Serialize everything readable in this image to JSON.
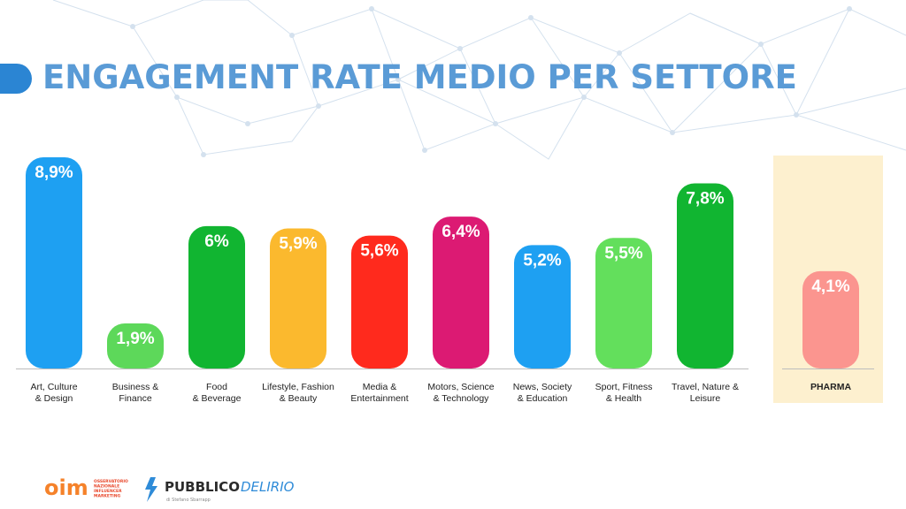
{
  "slide": {
    "title": "ENGAGEMENT RATE MEDIO PER SETTORE",
    "title_color": "#5a9bd6",
    "accent_color": "#2b85d3"
  },
  "chart_data": {
    "type": "bar",
    "title": "ENGAGEMENT RATE MEDIO PER SETTORE",
    "xlabel": "",
    "ylabel": "",
    "categories": [
      [
        "Art, Culture",
        "& Design"
      ],
      [
        "Business &",
        "Finance"
      ],
      [
        "Food",
        "& Beverage"
      ],
      [
        "Lifestyle, Fashion",
        "& Beauty"
      ],
      [
        "Media &",
        "Entertainment"
      ],
      [
        "Motors, Science",
        "& Technology"
      ],
      [
        "News, Society",
        "& Education"
      ],
      [
        "Sport, Fitness",
        "& Health"
      ],
      [
        "Travel, Nature &",
        "Leisure"
      ],
      [
        "PHARMA"
      ]
    ],
    "values": [
      8.9,
      1.9,
      6,
      5.9,
      5.6,
      6.4,
      5.2,
      5.5,
      7.8,
      4.1
    ],
    "labels": [
      "8,9%",
      "1,9%",
      "6%",
      "5,9%",
      "5,6%",
      "6,4%",
      "5,2%",
      "5,5%",
      "7,8%",
      "4,1%"
    ],
    "colors": [
      "#1ea0f2",
      "#5dd85a",
      "#11b531",
      "#fbb92e",
      "#ff2a1d",
      "#dc1a73",
      "#1ea0f2",
      "#63df5c",
      "#11b531",
      "#fb958f"
    ],
    "highlighted_category": "PHARMA",
    "highlight_color": "#fdf0cf",
    "ylim": [
      0,
      10
    ],
    "grid": false,
    "legend": "none"
  },
  "footer": {
    "logo1_text": "oim",
    "logo1_caption": [
      "OSSERVATORIO",
      "NAZIONALE",
      "INFLUENCER",
      "MARKETING"
    ],
    "logo2_text_a": "PUBBLICO",
    "logo2_text_b": "DELIRIO",
    "logo2_caption": "di Stefano Sbarrapp"
  }
}
